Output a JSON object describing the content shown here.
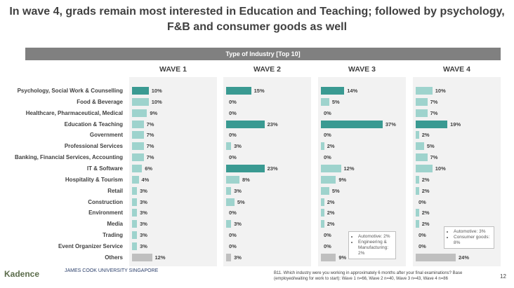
{
  "title": "In wave 4, grads remain most interested in Education and Teaching; followed by psychology, F&B and consumer goods as well",
  "banner": "Type of Industry [Top 10]",
  "colors": {
    "bar_top": "#3a9a92",
    "bar_light": "#9ed3cd",
    "bar_others": "#bfbfbf",
    "panel": "#f2f2f2"
  },
  "chart_data": {
    "type": "bar",
    "orientation": "horizontal",
    "categories": [
      "Psychology, Social Work & Counselling",
      "Food & Beverage",
      "Healthcare, Pharmaceutical, Medical",
      "Education & Teaching",
      "Government",
      "Professional Services",
      "Banking, Financial Services, Accounting",
      "IT & Software",
      "Hospitality & Tourism",
      "Retail",
      "Construction",
      "Environment",
      "Media",
      "Trading",
      "Event Organizer Service",
      "Others"
    ],
    "series": [
      {
        "name": "WAVE 1",
        "values": [
          10,
          10,
          9,
          7,
          7,
          7,
          7,
          6,
          4,
          3,
          3,
          3,
          3,
          3,
          3,
          12
        ],
        "highlight": [
          0
        ]
      },
      {
        "name": "WAVE 2",
        "values": [
          15,
          0,
          0,
          23,
          0,
          3,
          0,
          23,
          8,
          3,
          5,
          0,
          3,
          0,
          0,
          3
        ],
        "highlight": [
          0,
          3,
          7
        ]
      },
      {
        "name": "WAVE 3",
        "values": [
          14,
          5,
          0,
          37,
          0,
          2,
          0,
          12,
          9,
          5,
          2,
          2,
          2,
          0,
          0,
          9
        ],
        "highlight": [
          0,
          3
        ]
      },
      {
        "name": "WAVE 4",
        "values": [
          10,
          7,
          7,
          19,
          2,
          5,
          7,
          10,
          2,
          2,
          0,
          2,
          2,
          0,
          0,
          24
        ],
        "highlight": [
          3
        ]
      }
    ],
    "value_suffix": "%",
    "xlim": [
      0,
      40
    ]
  },
  "notes": {
    "wave3": [
      "Automotive: 2%",
      "Engineering & Manufacturing: 2%"
    ],
    "wave4": [
      "Automotive: 3%",
      "Consumer goods: 8%"
    ]
  },
  "footer": "B11. Which industry were you working in approximately 6 months after your final examinations? Base (employed/waiting for work to start): Wave 1 n=66, Wave 2 n=40, Wave 3 n=43, Wave 4 n=86",
  "page_number": "12",
  "logos": {
    "kadence": "Kadence",
    "jcu": "JAMES COOK UNIVERSITY SINGAPORE"
  }
}
